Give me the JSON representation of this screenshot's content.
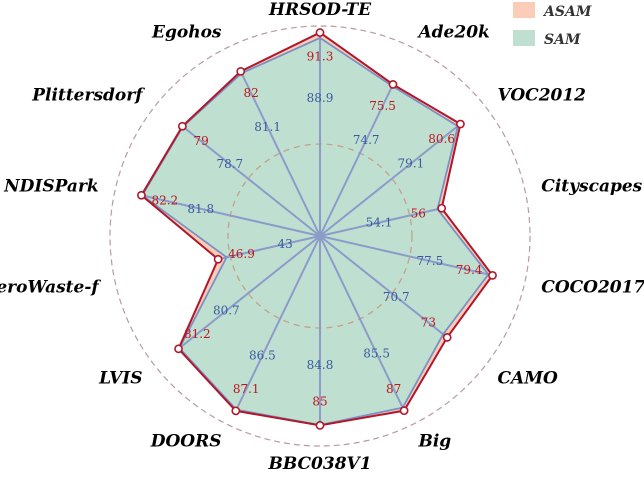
{
  "chart_data": {
    "type": "radar",
    "title": "",
    "categories": [
      "HRSOD-TE",
      "Ade20k",
      "VOC2012",
      "Cityscapes",
      "COCO2017",
      "CAMO",
      "Big",
      "BBC038V1",
      "DOORS",
      "LVIS",
      "ZeroWaste-f",
      "NDISPark",
      "Plittersdorf",
      "Egohos"
    ],
    "series": [
      {
        "name": "ASAM",
        "values": [
          91.3,
          75.5,
          80.6,
          56,
          79.4,
          73,
          87,
          85,
          87.1,
          81.2,
          46.9,
          82.2,
          79,
          82
        ],
        "color": "#fbcdb8",
        "line_color": "#b0182a"
      },
      {
        "name": "SAM",
        "values": [
          88.9,
          74.7,
          79.1,
          54.1,
          77.5,
          70.7,
          85.5,
          84.8,
          86.5,
          80.7,
          43,
          81.8,
          78.7,
          81.1
        ],
        "color": "#bfe0d0",
        "line_color": "#7d8fc4"
      }
    ],
    "legend": {
      "placement": "top-right"
    },
    "grid": true,
    "value_labels": true
  }
}
